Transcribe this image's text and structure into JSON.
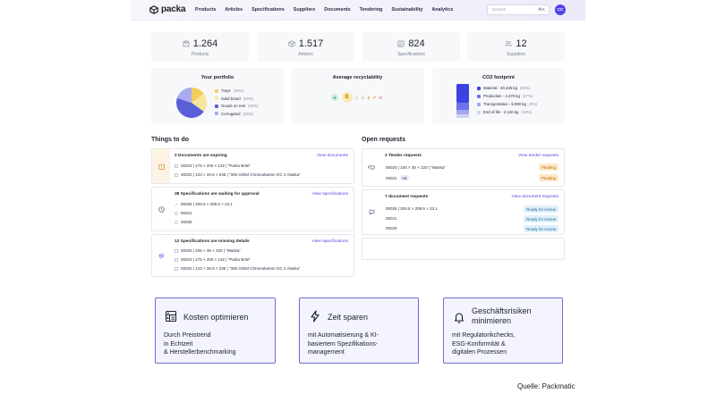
{
  "app": {
    "logo_text": "packa",
    "nav": [
      "Products",
      "Articles",
      "Specifications",
      "Suppliers",
      "Documents",
      "Tendering",
      "Sustainability",
      "Analytics"
    ],
    "search_placeholder": "Search",
    "search_shortcut": "⌘K",
    "avatar_initials": "CC"
  },
  "kpis": [
    {
      "value": "1.264",
      "label": "Products",
      "icon": "box-icon"
    },
    {
      "value": "1.517",
      "label": "Articles",
      "icon": "cube-icon"
    },
    {
      "value": "824",
      "label": "Specifications",
      "icon": "spec-sheet-icon"
    },
    {
      "value": "12",
      "label": "Suppliers",
      "icon": "users-icon"
    }
  ],
  "portfolio": {
    "title": "Your portfolio",
    "items": [
      {
        "label": "Trays",
        "pct": "(15%)",
        "color": "#f3cf5b"
      },
      {
        "label": "Solid board",
        "pct": "(20%)",
        "color": "#f7e59c"
      },
      {
        "label": "Goods on reel",
        "pct": "(40%)",
        "color": "#5b5fd6"
      },
      {
        "label": "Corrugated",
        "pct": "(25%)",
        "color": "#a9abf0"
      }
    ]
  },
  "recyclability": {
    "title": "Average recyclability",
    "grades": [
      "A",
      "B",
      "C",
      "D",
      "E",
      "F",
      "G"
    ],
    "active": "B"
  },
  "co2": {
    "title": "CO2 footprint",
    "items": [
      {
        "label": "Material - 40.425 kg",
        "pct": "(53%)",
        "color": "#3b42e0"
      },
      {
        "label": "Production - 4.470 kg",
        "pct": "(17%)",
        "color": "#6e73ea"
      },
      {
        "label": "Transportation - 5.890 kg",
        "pct": "(9%)",
        "color": "#a3a6f2"
      },
      {
        "label": "End of life - 2.140 kg",
        "pct": "(10%)",
        "color": "#cfd1f8"
      }
    ]
  },
  "todo": {
    "title": "Things to do",
    "items": [
      {
        "head": "2 Documents are expiring",
        "link": "View documents",
        "lines": [
          "00023 | 175 × 200 × 132 | \"Parka Brite\"",
          "00020 | 123 × 26.5 × 235 | \"305 G/DM Chromokarton GC 2 Alaska\""
        ]
      },
      {
        "head": "38 Specifications are waiting for approval",
        "link": "View specifications",
        "lines": [
          "00026 | 209.5 × 209.5 × 23.1",
          "00021",
          "00025"
        ]
      },
      {
        "head": "12 Specifications are missing details",
        "link": "View specifications",
        "lines": [
          "00020 | 105 × 35 × 220 | \"Waska\"",
          "00023 | 175 × 200 × 132 | \"Parka Brite\"",
          "00020 | 123 × 26.5 × 235 | \"305 G/DM Chromokarton GC 2 Alaska\""
        ]
      }
    ]
  },
  "requests": {
    "title": "Open requests",
    "items": [
      {
        "head": "2 Tender requests",
        "link": "View tender requests",
        "rows": [
          {
            "text": "00020 | 105 × 35 × 220 | \"Waska\"",
            "badge": "Pending"
          },
          {
            "text": "00021",
            "extra": "+2",
            "badge": "Pending"
          }
        ]
      },
      {
        "head": "7 document requests",
        "link": "View document requests",
        "rows": [
          {
            "text": "00026 | 209.5 × 209.5 × 23.1",
            "badge": "Ready for review"
          },
          {
            "text": "00021",
            "badge": "Ready for review"
          },
          {
            "text": "00025",
            "badge": "Ready for review"
          }
        ]
      }
    ]
  },
  "features": [
    {
      "title": "Kosten optimieren",
      "text": "Durch Preistrend\nin Echtzeit\n& Herstellerbenchmarking",
      "icon": "calculator-icon"
    },
    {
      "title": "Zeit sparen",
      "text": "mit Automatisierung & KI-\nbasiertem Spezifikations-\nmanagement",
      "icon": "lightning-icon"
    },
    {
      "title": "Geschäftsrisiken\nminimieren",
      "text": "mit Regulatorikchecks,\nESG-Konformität &\ndigitalen Prozessen",
      "icon": "bell-icon"
    }
  ],
  "source": "Quelle: Packmatic",
  "colors": {
    "accent": "#4f46e5",
    "feature_border": "#6b6fcf",
    "feature_bg": "#f3f4ff"
  }
}
